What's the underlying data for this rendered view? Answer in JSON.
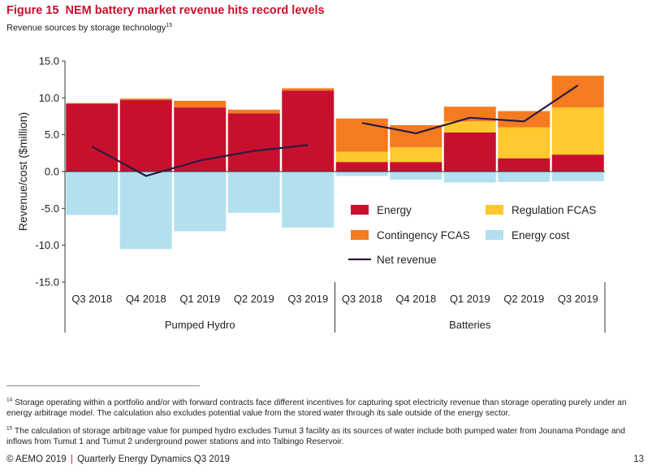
{
  "header": {
    "figure_label": "Figure 15",
    "title": "NEM battery market revenue hits record levels",
    "subtitle": "Revenue sources by storage technology",
    "subtitle_ref": "15"
  },
  "chart_data": {
    "type": "bar",
    "stacked": true,
    "ylabel": "Revenue/cost ($million)",
    "ylim": [
      -15,
      15
    ],
    "yticks": [
      "15.0",
      "10.0",
      "5.0",
      "0.0",
      "-5.0",
      "-10.0",
      "-15.0"
    ],
    "groups": [
      {
        "label": "Pumped Hydro",
        "categories": [
          "Q3 2018",
          "Q4 2018",
          "Q1 2019",
          "Q2 2019",
          "Q3 2019"
        ]
      },
      {
        "label": "Batteries",
        "categories": [
          "Q3 2018",
          "Q4 2018",
          "Q1 2019",
          "Q2 2019",
          "Q3 2019"
        ]
      }
    ],
    "series": [
      {
        "name": "Energy",
        "color": "#c8102e",
        "values": [
          9.2,
          9.7,
          8.7,
          7.9,
          11.0,
          1.3,
          1.3,
          5.3,
          1.8,
          2.3
        ]
      },
      {
        "name": "Regulation FCAS",
        "color": "#ffc82e",
        "values": [
          0,
          0,
          0,
          0,
          0,
          1.4,
          2.0,
          1.5,
          4.2,
          6.4
        ]
      },
      {
        "name": "Contingency FCAS",
        "color": "#f47b20",
        "values": [
          0.1,
          0.2,
          0.9,
          0.5,
          0.3,
          4.5,
          3.0,
          2.0,
          2.2,
          4.3
        ]
      },
      {
        "name": "Energy cost",
        "color": "#b2e0ee",
        "values": [
          -5.9,
          -10.5,
          -8.1,
          -5.6,
          -7.6,
          -0.6,
          -1.1,
          -1.5,
          -1.4,
          -1.3
        ]
      },
      {
        "name": "Net revenue",
        "color": "#2d1a3f",
        "type": "line",
        "segments": [
          [
            3.4,
            -0.6,
            1.5,
            2.8,
            3.6
          ],
          [
            6.6,
            5.2,
            7.3,
            6.8,
            11.7
          ]
        ]
      }
    ],
    "legend": {
      "placement": "bottom-right",
      "entries": [
        "Energy",
        "Regulation FCAS",
        "Contingency FCAS",
        "Energy cost",
        "Net revenue"
      ]
    }
  },
  "footnotes": [
    {
      "ref": "14",
      "text": "Storage operating within a portfolio and/or with forward contracts face different incentives for capturing spot electricity revenue than storage operating purely under an energy arbitrage model. The calculation also excludes potential value from the stored water through its sale outside of the energy sector."
    },
    {
      "ref": "15",
      "text": "The calculation of storage arbitrage value for pumped hydro excludes Tumut 3 facility as its sources of water include both pumped water from Jounama Pondage and inflows from Tumut 1 and Tumut 2 underground power stations and into Talbingo Reservoir."
    }
  ],
  "footer": {
    "copyright": "© AEMO 2019",
    "separator": "|",
    "publication": "Quarterly Energy Dynamics Q3 2019",
    "page": "13"
  }
}
